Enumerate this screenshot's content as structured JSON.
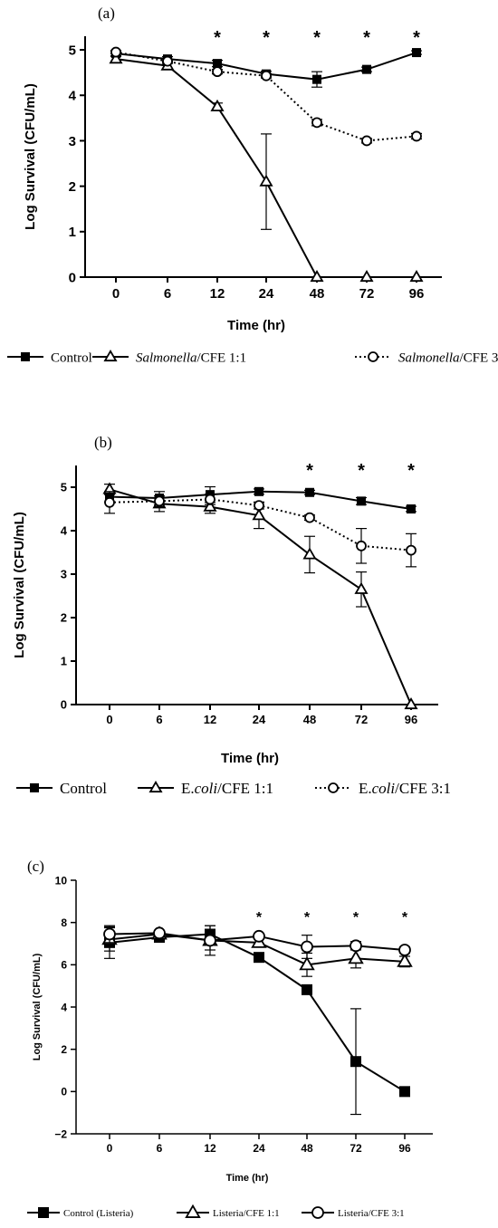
{
  "chart_data": [
    {
      "type": "line",
      "panel_label": "(a)",
      "xlabel": "Time (hr)",
      "ylabel": "Log Survival (CFU/mL)",
      "categories": [
        "0",
        "6",
        "12",
        "24",
        "48",
        "72",
        "96"
      ],
      "ylim": [
        0,
        5.3
      ],
      "yticks": [
        0,
        1,
        2,
        3,
        4,
        5
      ],
      "significance": [
        "",
        "",
        "*",
        "*",
        "*",
        "*",
        "*"
      ],
      "series": [
        {
          "name": "Control",
          "marker": "square",
          "line": "solid",
          "values": [
            4.92,
            4.8,
            4.7,
            4.47,
            4.35,
            4.57,
            4.94
          ],
          "errors": [
            0.05,
            0.05,
            0.07,
            0.06,
            0.17,
            0.05,
            0.04
          ]
        },
        {
          "name": "Salmonella/CFE 1:1",
          "legend_italic": "Salmonella",
          "legend_rest": "/CFE 1:1",
          "marker": "triangle",
          "line": "solid",
          "values": [
            4.8,
            4.65,
            3.75,
            2.1,
            0,
            0,
            0
          ],
          "errors": [
            0.05,
            0.08,
            0.08,
            1.05,
            0,
            0,
            0
          ]
        },
        {
          "name": "Salmonella/CFE 3:1",
          "legend_italic": "Salmonella",
          "legend_rest": "/CFE 3:1",
          "marker": "circle",
          "line": "dotted",
          "values": [
            4.95,
            4.75,
            4.52,
            4.43,
            3.4,
            3.0,
            3.1
          ],
          "errors": [
            0.04,
            0.05,
            0.05,
            0.05,
            0.07,
            0.05,
            0.06
          ]
        }
      ]
    },
    {
      "type": "line",
      "panel_label": "(b)",
      "xlabel": "Time (hr)",
      "ylabel": "Log Survival (CFU/mL)",
      "categories": [
        "0",
        "6",
        "12",
        "24",
        "48",
        "72",
        "96"
      ],
      "ylim": [
        0,
        5.5
      ],
      "yticks": [
        0,
        1,
        2,
        3,
        4,
        5
      ],
      "significance": [
        "",
        "",
        "",
        "",
        "*",
        "*",
        "*"
      ],
      "series": [
        {
          "name": "Control",
          "marker": "square",
          "line": "solid",
          "values": [
            4.78,
            4.75,
            4.83,
            4.9,
            4.88,
            4.68,
            4.5
          ],
          "errors": [
            0.12,
            0.15,
            0.18,
            0.06,
            0.05,
            0.08,
            0.06
          ]
        },
        {
          "name": "E.coli/CFE 1:1",
          "legend_italic": "coli",
          "legend_prefix": "E.",
          "legend_rest": "/CFE 1:1",
          "marker": "triangle",
          "line": "solid",
          "values": [
            4.95,
            4.62,
            4.55,
            4.35,
            3.45,
            2.65,
            0
          ],
          "errors": [
            0.12,
            0.18,
            0.15,
            0.3,
            0.42,
            0.4,
            0
          ]
        },
        {
          "name": "E.coli/CFE 3:1",
          "legend_italic": "coli",
          "legend_prefix": "E.",
          "legend_rest": "/CFE 3:1",
          "marker": "circle",
          "line": "dotted",
          "values": [
            4.65,
            4.68,
            4.72,
            4.58,
            4.3,
            3.65,
            3.55
          ],
          "errors": [
            0.25,
            0.12,
            0.12,
            0.08,
            0.06,
            0.4,
            0.38
          ]
        }
      ]
    },
    {
      "type": "line",
      "panel_label": "(c)",
      "xlabel": "Time (hr)",
      "ylabel": "Log Survival (CFU/mL)",
      "categories": [
        "0",
        "6",
        "12",
        "24",
        "48",
        "72",
        "96"
      ],
      "ylim": [
        -2,
        10
      ],
      "yticks": [
        -2,
        0,
        2,
        4,
        6,
        8,
        10
      ],
      "significance": [
        "",
        "",
        "",
        "*",
        "*",
        "*",
        "*"
      ],
      "series": [
        {
          "name": "Control (Listeria)",
          "marker": "square",
          "line": "solid",
          "values": [
            7.05,
            7.3,
            7.45,
            6.35,
            4.82,
            1.42,
            0
          ],
          "errors": [
            0.75,
            0.15,
            0.4,
            0.15,
            0.12,
            2.5,
            0
          ]
        },
        {
          "name": "Listeria/CFE 1:1",
          "marker": "triangle",
          "line": "solid",
          "values": [
            7.2,
            7.45,
            7.15,
            7.05,
            6.0,
            6.3,
            6.15
          ],
          "errors": [
            0.55,
            0.15,
            0.45,
            0.2,
            0.55,
            0.45,
            0.25
          ]
        },
        {
          "name": "Listeria/CFE 3:1",
          "marker": "circle",
          "line": "solid",
          "values": [
            7.45,
            7.5,
            7.15,
            7.35,
            6.85,
            6.9,
            6.7
          ],
          "errors": [
            0.4,
            0.12,
            0.7,
            0.12,
            0.55,
            0.2,
            0.15
          ]
        }
      ]
    }
  ]
}
